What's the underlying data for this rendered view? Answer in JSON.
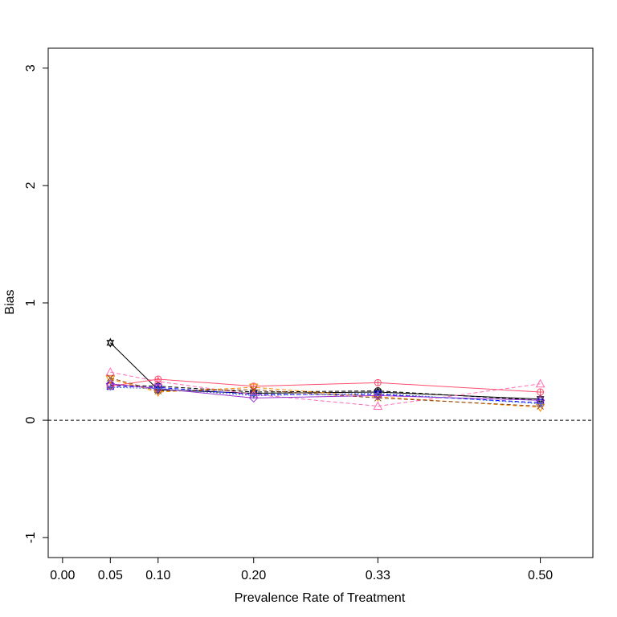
{
  "chart_data": {
    "type": "line",
    "xlabel": "Prevalence Rate of Treatment",
    "ylabel": "Bias",
    "xlim": [
      -0.015,
      0.555
    ],
    "ylim": [
      -1.17,
      3.17
    ],
    "x_ticks": [
      0.0,
      0.05,
      0.1,
      0.2,
      0.33,
      0.5
    ],
    "x_tick_labels": [
      "0.00",
      "0.05",
      "0.10",
      "0.20",
      "0.33",
      "0.50"
    ],
    "y_ticks": [
      -1,
      0,
      1,
      2,
      3
    ],
    "y_tick_labels": [
      "-1",
      "0",
      "1",
      "2",
      "3"
    ],
    "reference_line": {
      "y": 0,
      "style": "dashed",
      "color": "#000000"
    },
    "x": [
      0.05,
      0.1,
      0.2,
      0.33,
      0.5
    ],
    "series": [
      {
        "color": "#000000",
        "dash": "solid",
        "marker": "star",
        "values": [
          0.66,
          0.26,
          0.23,
          0.24,
          0.18
        ]
      },
      {
        "color": "#000000",
        "dash": "dashed",
        "marker": "circle",
        "values": [
          0.3,
          0.29,
          0.24,
          0.25,
          0.17
        ]
      },
      {
        "color": "#0000ff",
        "dash": "dashed",
        "marker": "square",
        "values": [
          0.29,
          0.28,
          0.22,
          0.22,
          0.15
        ]
      },
      {
        "color": "#ff69b4",
        "dash": "dashed",
        "marker": "triangle",
        "values": [
          0.41,
          0.33,
          0.22,
          0.12,
          0.31
        ]
      },
      {
        "color": "#ff4d6d",
        "dash": "solid",
        "marker": "circle-plus",
        "values": [
          0.29,
          0.35,
          0.29,
          0.32,
          0.24
        ]
      },
      {
        "color": "#ff8c00",
        "dash": "dashed",
        "marker": "triangle-down",
        "values": [
          0.35,
          0.24,
          0.28,
          0.2,
          0.11
        ]
      },
      {
        "color": "#8b4513",
        "dash": "dashed",
        "marker": "x",
        "values": [
          0.36,
          0.25,
          0.26,
          0.19,
          0.12
        ]
      },
      {
        "color": "#9932cc",
        "dash": "solid",
        "marker": "diamond",
        "values": [
          0.31,
          0.27,
          0.19,
          0.21,
          0.17
        ]
      },
      {
        "color": "#4169e1",
        "dash": "dotted",
        "marker": "plus",
        "values": [
          0.28,
          0.27,
          0.21,
          0.23,
          0.14
        ]
      }
    ]
  }
}
